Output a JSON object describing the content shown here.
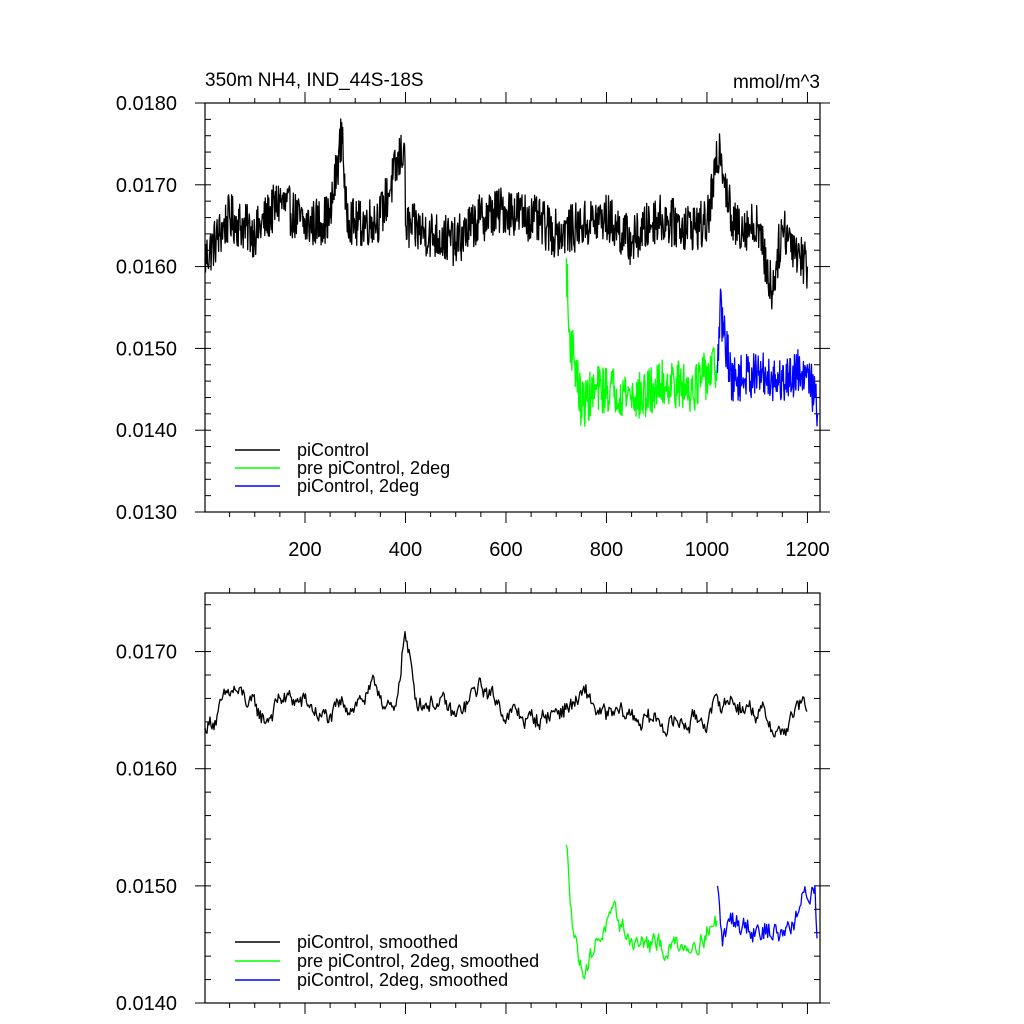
{
  "chart_data": [
    {
      "type": "line",
      "title": "350m NH4, IND_44S-18S",
      "units": "mmol/m^3",
      "xlabel": "",
      "ylabel": "",
      "xlim": [
        1,
        1225
      ],
      "ylim": [
        0.013,
        0.018
      ],
      "x_ticks": [
        200,
        400,
        600,
        800,
        1000,
        1200
      ],
      "x_tick_labels": [
        "200",
        "400",
        "600",
        "800",
        "1000",
        "1200"
      ],
      "y_ticks": [
        0.013,
        0.014,
        0.015,
        0.016,
        0.017,
        0.018
      ],
      "y_tick_labels": [
        "0.0130",
        "0.0140",
        "0.0150",
        "0.0160",
        "0.0170",
        "0.0180"
      ],
      "grid": false,
      "legend_position": "bottom-left",
      "series": [
        {
          "name": "piControl",
          "color": "#000000",
          "x_range": [
            1,
            1200
          ],
          "x_anchor": [
            1,
            50,
            100,
            150,
            200,
            250,
            275,
            280,
            300,
            350,
            398,
            400,
            450,
            500,
            550,
            600,
            650,
            700,
            750,
            800,
            850,
            900,
            950,
            1000,
            1026,
            1050,
            1100,
            1130,
            1150,
            1200
          ],
          "y_anchor": [
            0.0161,
            0.0166,
            0.0164,
            0.0168,
            0.0165,
            0.0166,
            0.0177,
            0.0167,
            0.0165,
            0.0166,
            0.0175,
            0.0165,
            0.0164,
            0.0163,
            0.0166,
            0.0167,
            0.0166,
            0.0164,
            0.0165,
            0.0166,
            0.0163,
            0.0166,
            0.0165,
            0.0165,
            0.0175,
            0.0165,
            0.0165,
            0.0157,
            0.0165,
            0.016
          ],
          "amplitude": 0.0003
        },
        {
          "name": "pre piControl, 2deg",
          "color": "#00ff00",
          "x_range": [
            720,
            1020
          ],
          "x_anchor": [
            720,
            725,
            735,
            750,
            780,
            820,
            870,
            920,
            970,
            1020
          ],
          "y_anchor": [
            0.0161,
            0.0152,
            0.0149,
            0.0143,
            0.0145,
            0.0145,
            0.0144,
            0.0146,
            0.0145,
            0.0148
          ],
          "amplitude": 0.0003
        },
        {
          "name": "piControl, 2deg",
          "color": "#0000ff",
          "x_range": [
            1021,
            1220
          ],
          "x_anchor": [
            1021,
            1026,
            1050,
            1100,
            1150,
            1200,
            1220
          ],
          "y_anchor": [
            0.0147,
            0.0155,
            0.0146,
            0.0147,
            0.0146,
            0.0148,
            0.0142
          ],
          "amplitude": 0.00028
        }
      ]
    },
    {
      "type": "line",
      "xlim": [
        1,
        1225
      ],
      "ylim": [
        0.014,
        0.0175
      ],
      "x_ticks": [
        200,
        400,
        600,
        800,
        1000,
        1200
      ],
      "y_ticks": [
        0.014,
        0.015,
        0.016,
        0.017
      ],
      "y_tick_labels": [
        "0.0140",
        "0.0150",
        "0.0160",
        "0.0170"
      ],
      "grid": false,
      "legend_position": "bottom-left",
      "series": [
        {
          "name": "piControl, smoothed",
          "color": "#000000",
          "x_range": [
            1,
            1200
          ],
          "x_anchor": [
            1,
            60,
            120,
            150,
            200,
            250,
            300,
            350,
            380,
            398,
            420,
            460,
            500,
            550,
            600,
            650,
            700,
            760,
            800,
            850,
            900,
            950,
            1000,
            1050,
            1100,
            1150,
            1180,
            1200
          ],
          "y_anchor": [
            0.01635,
            0.01665,
            0.0164,
            0.0166,
            0.01655,
            0.0164,
            0.0166,
            0.01665,
            0.0164,
            0.0172,
            0.0166,
            0.0166,
            0.0164,
            0.0167,
            0.0165,
            0.0164,
            0.0165,
            0.0166,
            0.0164,
            0.01645,
            0.0164,
            0.0164,
            0.01645,
            0.0166,
            0.0165,
            0.0163,
            0.0165,
            0.0165
          ],
          "amplitude": 0.00012
        },
        {
          "name": "pre piControl, 2deg, smoothed",
          "color": "#00ff00",
          "x_range": [
            720,
            1020
          ],
          "x_anchor": [
            720,
            730,
            750,
            800,
            850,
            900,
            950,
            1000,
            1020
          ],
          "y_anchor": [
            0.01535,
            0.0148,
            0.0143,
            0.0147,
            0.01455,
            0.01445,
            0.0145,
            0.01465,
            0.0147
          ],
          "amplitude": 0.00013
        },
        {
          "name": "piControl, 2deg, smoothed",
          "color": "#0000ff",
          "x_range": [
            1021,
            1220
          ],
          "x_anchor": [
            1021,
            1030,
            1050,
            1100,
            1150,
            1200,
            1215,
            1220
          ],
          "y_anchor": [
            0.015,
            0.0145,
            0.0147,
            0.0147,
            0.0146,
            0.0149,
            0.015,
            0.01445
          ],
          "amplitude": 0.00015
        }
      ]
    }
  ]
}
